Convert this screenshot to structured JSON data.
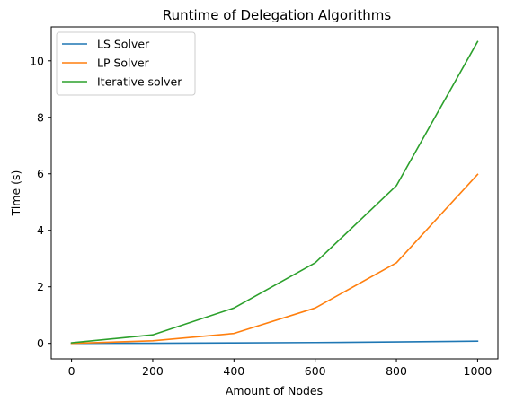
{
  "chart_data": {
    "type": "line",
    "title": "Runtime of Delegation Algorithms",
    "xlabel": "Amount of Nodes",
    "ylabel": "Time (s)",
    "xlim": [
      -50,
      1050
    ],
    "ylim": [
      -0.55,
      11.2
    ],
    "xticks": [
      0,
      200,
      400,
      600,
      800,
      1000
    ],
    "yticks": [
      0,
      2,
      4,
      6,
      8,
      10
    ],
    "grid": false,
    "legend_position": "top-left",
    "x": [
      0,
      200,
      400,
      600,
      800,
      1000
    ],
    "series": [
      {
        "name": "LS Solver",
        "color": "#1f77b4",
        "values": [
          0.0,
          0.005,
          0.015,
          0.03,
          0.05,
          0.08
        ]
      },
      {
        "name": "LP Solver",
        "color": "#ff7f0e",
        "values": [
          0.0,
          0.09,
          0.35,
          1.25,
          2.85,
          5.98
        ]
      },
      {
        "name": "Iterative solver",
        "color": "#2ca02c",
        "values": [
          0.02,
          0.3,
          1.25,
          2.85,
          5.58,
          10.68
        ]
      }
    ]
  }
}
